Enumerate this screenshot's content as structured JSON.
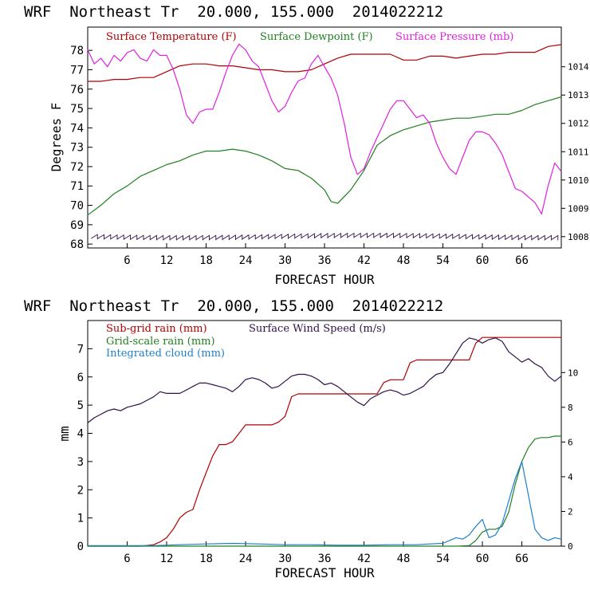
{
  "chart_data": [
    {
      "type": "line",
      "title": "WRF  Northeast Tr  20.000, 155.000  2014022212",
      "xlabel": "FORECAST HOUR",
      "ylabel": "Degrees F",
      "xlim": [
        0,
        72
      ],
      "ylim": [
        67.8,
        79.2
      ],
      "y2lim": [
        1007.6,
        1015.4
      ],
      "x_ticks": [
        6,
        12,
        18,
        24,
        30,
        36,
        42,
        48,
        54,
        60,
        66
      ],
      "y_ticks": [
        68,
        69,
        70,
        71,
        72,
        73,
        74,
        75,
        76,
        77,
        78
      ],
      "y2_ticks": [
        1008,
        1009,
        1010,
        1011,
        1012,
        1013,
        1014
      ],
      "grid": false,
      "legend_position": "top",
      "series": [
        {
          "name": "Surface Temperature (F)",
          "color": "#b00000",
          "axis": "left",
          "x": [
            0,
            2,
            4,
            6,
            8,
            10,
            12,
            14,
            16,
            18,
            20,
            22,
            24,
            26,
            28,
            30,
            32,
            34,
            36,
            38,
            40,
            42,
            44,
            46,
            48,
            50,
            52,
            54,
            56,
            58,
            60,
            62,
            64,
            66,
            68,
            70,
            72
          ],
          "values": [
            76.4,
            76.4,
            76.5,
            76.5,
            76.6,
            76.6,
            76.9,
            77.2,
            77.3,
            77.3,
            77.2,
            77.2,
            77.1,
            77.0,
            77.0,
            76.9,
            76.9,
            77.0,
            77.3,
            77.6,
            77.8,
            77.8,
            77.8,
            77.8,
            77.5,
            77.5,
            77.7,
            77.7,
            77.6,
            77.7,
            77.8,
            77.8,
            77.9,
            77.9,
            77.9,
            78.2,
            78.3
          ]
        },
        {
          "name": "Surface Dewpoint (F)",
          "color": "#208020",
          "axis": "left",
          "x": [
            0,
            2,
            4,
            6,
            8,
            10,
            12,
            14,
            16,
            18,
            20,
            22,
            24,
            26,
            28,
            30,
            32,
            34,
            36,
            37,
            38,
            40,
            42,
            44,
            46,
            48,
            50,
            52,
            54,
            56,
            58,
            60,
            62,
            64,
            66,
            68,
            70,
            72
          ],
          "values": [
            69.5,
            70.0,
            70.6,
            71.0,
            71.5,
            71.8,
            72.1,
            72.3,
            72.6,
            72.8,
            72.8,
            72.9,
            72.8,
            72.6,
            72.3,
            71.9,
            71.8,
            71.4,
            70.8,
            70.2,
            70.1,
            70.8,
            71.8,
            73.1,
            73.6,
            73.9,
            74.1,
            74.3,
            74.4,
            74.5,
            74.5,
            74.6,
            74.7,
            74.7,
            74.9,
            75.2,
            75.4,
            75.6
          ]
        },
        {
          "name": "Surface Pressure (mb)",
          "color": "#e020e0",
          "axis": "right",
          "x": [
            0,
            1,
            2,
            3,
            4,
            5,
            6,
            7,
            8,
            9,
            10,
            11,
            12,
            13,
            14,
            15,
            16,
            17,
            18,
            19,
            20,
            21,
            22,
            23,
            24,
            25,
            26,
            27,
            28,
            29,
            30,
            31,
            32,
            33,
            34,
            35,
            36,
            37,
            38,
            39,
            40,
            41,
            42,
            43,
            44,
            45,
            46,
            47,
            48,
            49,
            50,
            51,
            52,
            53,
            54,
            55,
            56,
            57,
            58,
            59,
            60,
            61,
            62,
            63,
            64,
            65,
            66,
            67,
            68,
            69,
            70,
            71,
            72
          ],
          "values": [
            1014.6,
            1014.1,
            1014.3,
            1014.0,
            1014.4,
            1014.2,
            1014.5,
            1014.6,
            1014.3,
            1014.2,
            1014.6,
            1014.4,
            1014.4,
            1013.9,
            1013.2,
            1012.3,
            1012.0,
            1012.4,
            1012.5,
            1012.5,
            1013.1,
            1013.8,
            1014.4,
            1014.8,
            1014.6,
            1014.2,
            1014.0,
            1013.4,
            1012.8,
            1012.4,
            1012.6,
            1013.1,
            1013.5,
            1013.6,
            1014.1,
            1014.4,
            1014.0,
            1013.6,
            1013.0,
            1012.0,
            1010.8,
            1010.2,
            1010.4,
            1011.0,
            1011.5,
            1012.0,
            1012.5,
            1012.8,
            1012.8,
            1012.5,
            1012.2,
            1012.3,
            1012.0,
            1011.3,
            1010.8,
            1010.4,
            1010.2,
            1010.8,
            1011.4,
            1011.7,
            1011.7,
            1011.6,
            1011.3,
            1010.9,
            1010.3,
            1009.7,
            1009.6,
            1009.4,
            1009.2,
            1008.8,
            1009.8,
            1010.6,
            1010.3
          ]
        }
      ],
      "wind_barbs_note": "Wind barbs along the bottom of the panel"
    },
    {
      "type": "line",
      "title": "WRF  Northeast Tr  20.000, 155.000  2014022212",
      "xlabel": "FORECAST HOUR",
      "ylabel": "mm",
      "xlim": [
        0,
        72
      ],
      "ylim": [
        0,
        8
      ],
      "y2lim": [
        0,
        13
      ],
      "x_ticks": [
        6,
        12,
        18,
        24,
        30,
        36,
        42,
        48,
        54,
        60,
        66
      ],
      "y_ticks": [
        0,
        1,
        2,
        3,
        4,
        5,
        6,
        7
      ],
      "y2_ticks": [
        0,
        2,
        4,
        6,
        8,
        10
      ],
      "grid": false,
      "legend_position": "top-left",
      "series": [
        {
          "name": "Sub-grid rain (mm)",
          "color": "#b00000",
          "axis": "left",
          "x": [
            0,
            8,
            10,
            11,
            12,
            13,
            14,
            15,
            16,
            17,
            18,
            19,
            20,
            21,
            22,
            23,
            24,
            25,
            26,
            27,
            28,
            29,
            30,
            31,
            32,
            33,
            34,
            35,
            36,
            37,
            38,
            39,
            40,
            41,
            42,
            43,
            44,
            45,
            46,
            47,
            48,
            49,
            50,
            51,
            52,
            53,
            54,
            55,
            56,
            57,
            58,
            59,
            60,
            61,
            62,
            63,
            64,
            65,
            66,
            67,
            68,
            69,
            70,
            71,
            72
          ],
          "values": [
            0,
            0,
            0.05,
            0.15,
            0.3,
            0.6,
            1.0,
            1.2,
            1.3,
            2.0,
            2.6,
            3.2,
            3.6,
            3.6,
            3.7,
            4.0,
            4.3,
            4.3,
            4.3,
            4.3,
            4.3,
            4.4,
            4.6,
            5.3,
            5.4,
            5.4,
            5.4,
            5.4,
            5.4,
            5.4,
            5.4,
            5.4,
            5.4,
            5.4,
            5.4,
            5.4,
            5.4,
            5.8,
            5.9,
            5.9,
            5.9,
            6.5,
            6.6,
            6.6,
            6.6,
            6.6,
            6.6,
            6.6,
            6.6,
            6.6,
            6.6,
            7.2,
            7.4,
            7.4,
            7.4,
            7.4,
            7.4,
            7.4,
            7.4,
            7.4,
            7.4,
            7.4,
            7.4,
            7.4,
            7.4
          ]
        },
        {
          "name": "Grid-scale rain (mm)",
          "color": "#208020",
          "axis": "left",
          "x": [
            0,
            56,
            58,
            59,
            60,
            61,
            62,
            63,
            64,
            65,
            66,
            67,
            68,
            69,
            70,
            71,
            72
          ],
          "values": [
            0,
            0,
            0.02,
            0.2,
            0.5,
            0.6,
            0.6,
            0.7,
            1.2,
            2.2,
            3.0,
            3.5,
            3.8,
            3.85,
            3.85,
            3.9,
            3.9
          ]
        },
        {
          "name": "Integrated cloud (mm)",
          "color": "#1e7fd0",
          "axis": "left",
          "x": [
            0,
            10,
            14,
            18,
            22,
            26,
            30,
            34,
            38,
            42,
            46,
            50,
            52,
            54,
            55,
            56,
            57,
            58,
            59,
            60,
            61,
            62,
            63,
            64,
            65,
            66,
            67,
            68,
            69,
            70,
            71,
            72
          ],
          "values": [
            0.02,
            0.02,
            0.05,
            0.08,
            0.1,
            0.08,
            0.05,
            0.05,
            0.03,
            0.03,
            0.05,
            0.05,
            0.08,
            0.1,
            0.2,
            0.3,
            0.25,
            0.4,
            0.7,
            0.95,
            0.3,
            0.4,
            0.8,
            1.6,
            2.4,
            3.0,
            1.8,
            0.6,
            0.3,
            0.2,
            0.3,
            0.25
          ]
        },
        {
          "name": "Surface Wind Speed (m/s)",
          "color": "#30104a",
          "axis": "right",
          "x": [
            0,
            1,
            2,
            3,
            4,
            5,
            6,
            7,
            8,
            9,
            10,
            11,
            12,
            13,
            14,
            15,
            16,
            17,
            18,
            19,
            20,
            21,
            22,
            23,
            24,
            25,
            26,
            27,
            28,
            29,
            30,
            31,
            32,
            33,
            34,
            35,
            36,
            37,
            38,
            39,
            40,
            41,
            42,
            43,
            44,
            45,
            46,
            47,
            48,
            49,
            50,
            51,
            52,
            53,
            54,
            55,
            56,
            57,
            58,
            59,
            60,
            61,
            62,
            63,
            64,
            65,
            66,
            67,
            68,
            69,
            70,
            71,
            72
          ],
          "values": [
            7.1,
            7.4,
            7.6,
            7.8,
            7.9,
            7.8,
            8.0,
            8.1,
            8.2,
            8.4,
            8.6,
            8.9,
            8.8,
            8.8,
            8.8,
            9.0,
            9.2,
            9.4,
            9.4,
            9.3,
            9.2,
            9.1,
            8.9,
            9.2,
            9.6,
            9.7,
            9.6,
            9.4,
            9.1,
            9.2,
            9.5,
            9.8,
            9.9,
            9.9,
            9.8,
            9.6,
            9.3,
            9.4,
            9.2,
            8.9,
            8.6,
            8.3,
            8.1,
            8.5,
            8.7,
            8.9,
            9.0,
            8.9,
            8.7,
            8.8,
            9.0,
            9.2,
            9.6,
            9.9,
            10.0,
            10.5,
            11.1,
            11.7,
            12.0,
            11.9,
            11.7,
            11.9,
            12.0,
            11.8,
            11.2,
            10.9,
            10.6,
            10.8,
            10.5,
            10.3,
            9.8,
            9.5,
            9.8
          ]
        }
      ]
    }
  ]
}
